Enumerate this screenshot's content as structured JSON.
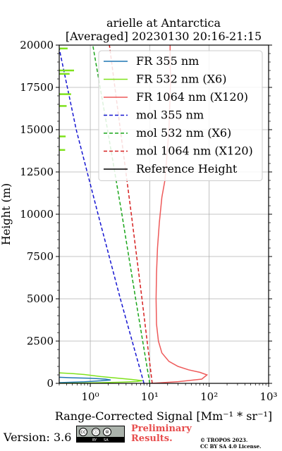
{
  "chart_data": {
    "type": "line",
    "title": "arielle at Antarctica",
    "subtitle": "[Averaged] 20230130 20:16-21:15",
    "xlabel": "Range-Corrected Signal [Mm⁻¹ * sr⁻¹]",
    "ylabel": "Height (m)",
    "xscale": "log",
    "xlim": [
      0.3,
      1000
    ],
    "ylim": [
      0,
      20000
    ],
    "xticks": [
      1,
      10,
      100,
      1000
    ],
    "xtick_labels": [
      "10⁰",
      "10¹",
      "10²",
      "10³"
    ],
    "yticks": [
      0,
      2500,
      5000,
      7500,
      10000,
      12500,
      15000,
      17500,
      20000
    ],
    "ytick_labels": [
      "0",
      "2500",
      "5000",
      "7500",
      "10000",
      "12500",
      "15000",
      "17500",
      "20000"
    ],
    "grid": true,
    "legend_position": "top-right",
    "series": [
      {
        "name": "FR 355 nm",
        "color": "#1f77b4",
        "style": "solid",
        "points": [
          [
            0.3,
            40
          ],
          [
            0.8,
            90
          ],
          [
            1.5,
            150
          ],
          [
            2.2,
            200
          ],
          [
            1.8,
            250
          ],
          [
            1.0,
            300
          ],
          [
            0.5,
            330
          ],
          [
            0.3,
            360
          ]
        ]
      },
      {
        "name": "FR 532 nm (X6)",
        "color": "#7fe21c",
        "style": "solid",
        "points": [
          [
            0.3,
            0
          ],
          [
            1.2,
            30
          ],
          [
            3.5,
            70
          ],
          [
            6.0,
            110
          ],
          [
            7.5,
            160
          ],
          [
            5.0,
            230
          ],
          [
            3.0,
            300
          ],
          [
            1.5,
            400
          ],
          [
            0.8,
            520
          ],
          [
            0.5,
            580
          ],
          [
            0.3,
            620
          ]
        ]
      },
      {
        "name": "FR 1064 nm (X120)",
        "color": "#ee5a5a",
        "style": "solid",
        "points": [
          [
            10.5,
            0
          ],
          [
            30,
            100
          ],
          [
            75,
            250
          ],
          [
            92,
            500
          ],
          [
            70,
            650
          ],
          [
            45,
            800
          ],
          [
            30,
            1000
          ],
          [
            21,
            1300
          ],
          [
            16,
            1800
          ],
          [
            14,
            2500
          ],
          [
            13,
            3500
          ],
          [
            12.8,
            5000
          ],
          [
            13,
            6500
          ],
          [
            13.5,
            8000
          ],
          [
            14.5,
            9500
          ],
          [
            16,
            11000
          ],
          [
            18,
            12000
          ],
          [
            19,
            13000
          ],
          [
            20,
            14000
          ],
          [
            21,
            15000
          ],
          [
            21.5,
            16000
          ],
          [
            22,
            17000
          ],
          [
            22.5,
            18000
          ],
          [
            22,
            19000
          ],
          [
            22,
            20000
          ]
        ]
      },
      {
        "name": "mol 355 nm",
        "color": "#1515d1",
        "style": "dashed",
        "points": [
          [
            8.0,
            0
          ],
          [
            3.2,
            5000
          ],
          [
            1.35,
            10000
          ],
          [
            0.58,
            15000
          ],
          [
            0.3,
            19800
          ]
        ]
      },
      {
        "name": "mol 532 nm (X6)",
        "color": "#19a519",
        "style": "dashed",
        "points": [
          [
            10,
            0
          ],
          [
            5.8,
            5000
          ],
          [
            3.4,
            10000
          ],
          [
            1.95,
            15000
          ],
          [
            1.1,
            20000
          ]
        ]
      },
      {
        "name": "mol 1064 nm (X120)",
        "color": "#d62020",
        "style": "dashed",
        "points": [
          [
            11,
            0
          ],
          [
            7.4,
            5000
          ],
          [
            4.9,
            10000
          ],
          [
            3.2,
            15000
          ],
          [
            2.1,
            20000
          ]
        ]
      },
      {
        "name": "Reference Height",
        "color": "#000000",
        "style": "solid",
        "points": []
      }
    ]
  },
  "footer": {
    "version": "Version: 3.6",
    "license_badge": [
      "cc",
      "ⓘ",
      "⊜",
      "BY",
      "SA"
    ],
    "preliminary_line1": "Preliminary",
    "preliminary_line2": "Results.",
    "copyright_line1": "© TROPOS 2023.",
    "copyright_line2": "CC BY SA 4.0 License."
  }
}
